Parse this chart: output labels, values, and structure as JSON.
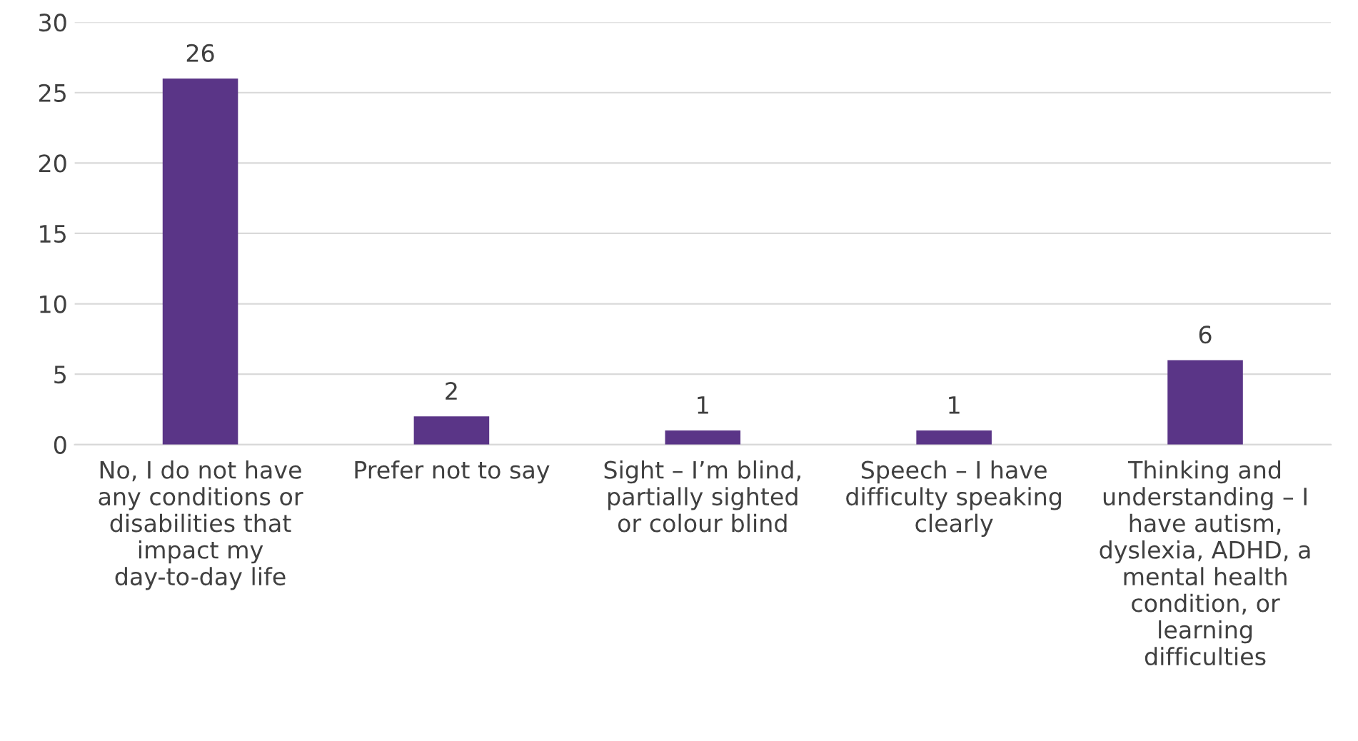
{
  "chart_data": {
    "type": "bar",
    "categories": [
      "No, I do not have any conditions or disabilities that impact my day-to-day life",
      "Prefer not to say",
      "Sight – I’m blind, partially sighted or colour blind",
      "Speech – I have difficulty speaking clearly",
      "Thinking and understanding – I have autism, dyslexia, ADHD, a mental health condition, or learning difficulties"
    ],
    "values": [
      26,
      2,
      1,
      1,
      6
    ],
    "color": "#5a3587",
    "ylim": [
      0,
      30
    ],
    "yticks": [
      0,
      5,
      10,
      15,
      20,
      25,
      30
    ],
    "grid": "y",
    "data_labels": true
  }
}
